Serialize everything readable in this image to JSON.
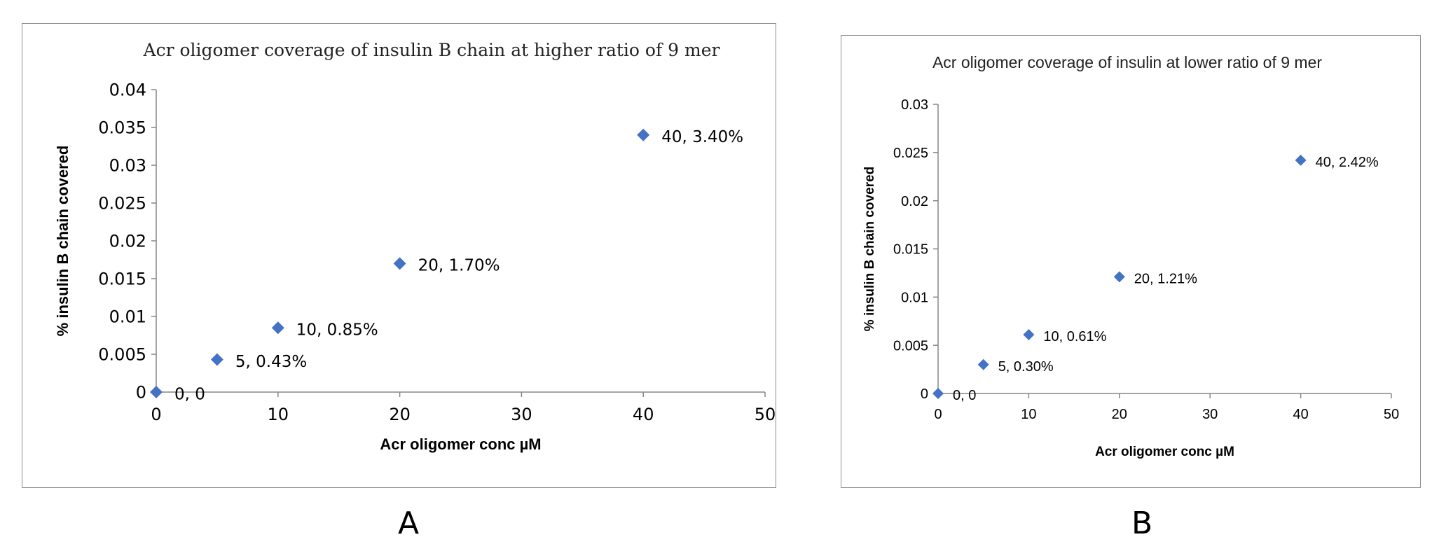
{
  "chart_data": [
    {
      "type": "scatter",
      "panel": "A",
      "title": "Acr oligomer coverage of insulin B chain at higher ratio of 9 mer",
      "xlabel": "Acr oligomer  conc µM",
      "ylabel": "% insulin B chain covered",
      "xlim": [
        0,
        50
      ],
      "ylim": [
        0,
        0.04
      ],
      "xticks": [
        0,
        10,
        20,
        30,
        40,
        50
      ],
      "yticks": [
        0,
        0.005,
        0.01,
        0.015,
        0.02,
        0.025,
        0.03,
        0.035,
        0.04
      ],
      "ytick_labels": [
        "0",
        "0.005",
        "0.01",
        "0.015",
        "0.02",
        "0.025",
        "0.03",
        "0.035",
        "0.04"
      ],
      "points": [
        {
          "x": 0,
          "y": 0,
          "label": "0, 0"
        },
        {
          "x": 5,
          "y": 0.0043,
          "label": "5, 0.43%"
        },
        {
          "x": 10,
          "y": 0.0085,
          "label": "10, 0.85%"
        },
        {
          "x": 20,
          "y": 0.017,
          "label": "20, 1.70%"
        },
        {
          "x": 40,
          "y": 0.034,
          "label": "40, 3.40%"
        }
      ],
      "marker_color": "#4472c4",
      "grid": false
    },
    {
      "type": "scatter",
      "panel": "B",
      "title": "Acr oligomer coverage of insulin at lower ratio of 9 mer",
      "xlabel": "Acr oligomer conc µM",
      "ylabel": "% insulin B chain covered",
      "xlim": [
        0,
        50
      ],
      "ylim": [
        0,
        0.03
      ],
      "xticks": [
        0,
        10,
        20,
        30,
        40,
        50
      ],
      "yticks": [
        0,
        0.005,
        0.01,
        0.015,
        0.02,
        0.025,
        0.03
      ],
      "ytick_labels": [
        "0",
        "0.005",
        "0.01",
        "0.015",
        "0.02",
        "0.025",
        "0.03"
      ],
      "points": [
        {
          "x": 0,
          "y": 0,
          "label": "0, 0"
        },
        {
          "x": 5,
          "y": 0.003,
          "label": "5, 0.30%"
        },
        {
          "x": 10,
          "y": 0.0061,
          "label": "10, 0.61%"
        },
        {
          "x": 20,
          "y": 0.0121,
          "label": "20, 1.21%"
        },
        {
          "x": 40,
          "y": 0.0242,
          "label": "40, 2.42%"
        }
      ],
      "marker_color": "#4472c4",
      "grid": false
    }
  ],
  "panel_labels": {
    "a": "A",
    "b": "B"
  }
}
